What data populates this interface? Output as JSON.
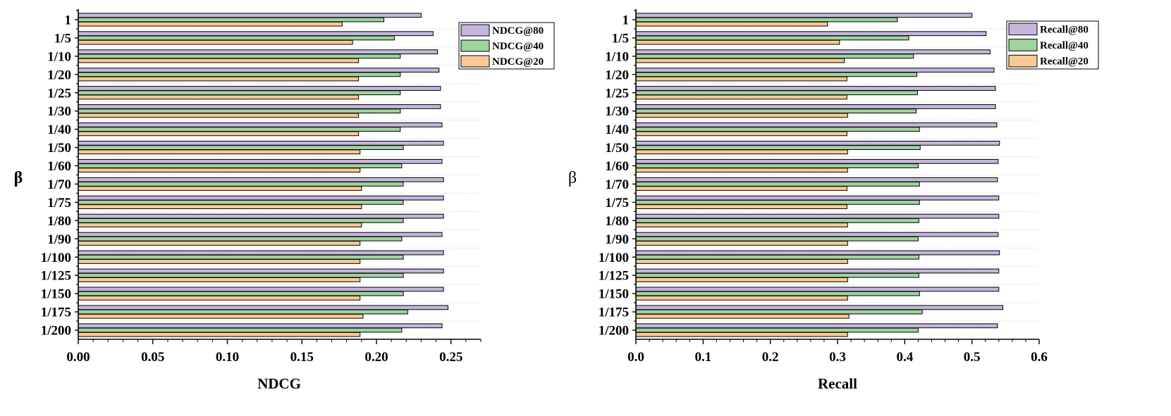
{
  "chart_data": [
    {
      "type": "bar",
      "orientation": "horizontal",
      "categories": [
        "1",
        "1/5",
        "1/10",
        "1/20",
        "1/25",
        "1/30",
        "1/40",
        "1/50",
        "1/60",
        "1/70",
        "1/75",
        "1/80",
        "1/90",
        "1/100",
        "1/125",
        "1/150",
        "1/175",
        "1/200"
      ],
      "series": [
        {
          "name": "NDCG@80",
          "color": "#c4b6dc",
          "values": [
            0.23,
            0.238,
            0.241,
            0.242,
            0.243,
            0.243,
            0.244,
            0.245,
            0.244,
            0.245,
            0.245,
            0.245,
            0.244,
            0.245,
            0.245,
            0.245,
            0.248,
            0.244
          ]
        },
        {
          "name": "NDCG@40",
          "color": "#9ed49d",
          "values": [
            0.205,
            0.212,
            0.216,
            0.216,
            0.216,
            0.216,
            0.216,
            0.218,
            0.217,
            0.218,
            0.218,
            0.218,
            0.217,
            0.218,
            0.218,
            0.218,
            0.221,
            0.217
          ]
        },
        {
          "name": "NDCG@20",
          "color": "#f9c894",
          "values": [
            0.177,
            0.184,
            0.188,
            0.188,
            0.188,
            0.188,
            0.188,
            0.189,
            0.189,
            0.19,
            0.19,
            0.19,
            0.189,
            0.189,
            0.189,
            0.189,
            0.191,
            0.189
          ]
        }
      ],
      "xlabel": "NDCG",
      "ylabel": "β",
      "xlim": [
        0,
        0.27
      ],
      "xticks": [
        "0.00",
        "0.05",
        "0.10",
        "0.15",
        "0.20",
        "0.25"
      ],
      "xtick_values": [
        0,
        0.05,
        0.1,
        0.15,
        0.2,
        0.25
      ],
      "legend_position": "top-right",
      "grid": "horizontal dashed"
    },
    {
      "type": "bar",
      "orientation": "horizontal",
      "categories": [
        "1",
        "1/5",
        "1/10",
        "1/20",
        "1/25",
        "1/30",
        "1/40",
        "1/50",
        "1/60",
        "1/70",
        "1/75",
        "1/80",
        "1/90",
        "1/100",
        "1/125",
        "1/150",
        "1/175",
        "1/200"
      ],
      "series": [
        {
          "name": "Recall@80",
          "color": "#c4b6dc",
          "values": [
            0.5,
            0.521,
            0.527,
            0.533,
            0.535,
            0.535,
            0.537,
            0.541,
            0.539,
            0.538,
            0.54,
            0.54,
            0.539,
            0.541,
            0.54,
            0.54,
            0.546,
            0.538
          ]
        },
        {
          "name": "Recall@40",
          "color": "#9ed49d",
          "values": [
            0.389,
            0.406,
            0.413,
            0.418,
            0.419,
            0.417,
            0.422,
            0.423,
            0.42,
            0.422,
            0.422,
            0.421,
            0.42,
            0.421,
            0.421,
            0.422,
            0.426,
            0.42
          ]
        },
        {
          "name": "Recall@20",
          "color": "#f9c894",
          "values": [
            0.285,
            0.303,
            0.31,
            0.314,
            0.314,
            0.315,
            0.314,
            0.315,
            0.315,
            0.314,
            0.314,
            0.315,
            0.315,
            0.315,
            0.315,
            0.315,
            0.317,
            0.315
          ]
        }
      ],
      "xlabel": "Recall",
      "ylabel": "β",
      "xlim": [
        0,
        0.6
      ],
      "xticks": [
        "0.0",
        "0.1",
        "0.2",
        "0.3",
        "0.4",
        "0.5",
        "0.6"
      ],
      "xtick_values": [
        0,
        0.1,
        0.2,
        0.3,
        0.4,
        0.5,
        0.6
      ],
      "legend_position": "top-right",
      "grid": "horizontal dashed"
    }
  ]
}
